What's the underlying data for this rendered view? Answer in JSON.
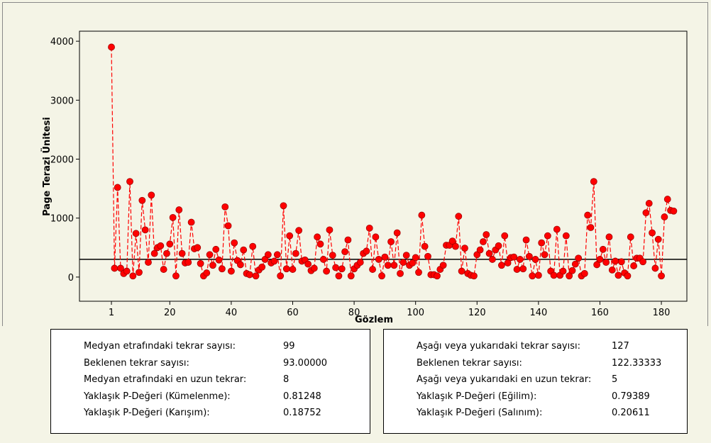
{
  "chart_data": {
    "type": "line",
    "ylabel": "Page Terazi Ünitesi",
    "xlabel": "Gözlem",
    "x": [
      1,
      2,
      3,
      4,
      5,
      6,
      7,
      8,
      9,
      10,
      11,
      12,
      13,
      14,
      15,
      16,
      17,
      18,
      19,
      20,
      21,
      22,
      23,
      24,
      25,
      26,
      27,
      28,
      29,
      30,
      31,
      32,
      33,
      34,
      35,
      36,
      37,
      38,
      39,
      40,
      41,
      42,
      43,
      44,
      45,
      46,
      47,
      48,
      49,
      50,
      51,
      52,
      53,
      54,
      55,
      56,
      57,
      58,
      59,
      60,
      61,
      62,
      63,
      64,
      65,
      66,
      67,
      68,
      69,
      70,
      71,
      72,
      73,
      74,
      75,
      76,
      77,
      78,
      79,
      80,
      81,
      82,
      83,
      84,
      85,
      86,
      87,
      88,
      89,
      90,
      91,
      92,
      93,
      94,
      95,
      96,
      97,
      98,
      99,
      100,
      101,
      102,
      103,
      104,
      105,
      106,
      107,
      108,
      109,
      110,
      111,
      112,
      113,
      114,
      115,
      116,
      117,
      118,
      119,
      120,
      121,
      122,
      123,
      124,
      125,
      126,
      127,
      128,
      129,
      130,
      131,
      132,
      133,
      134,
      135,
      136,
      137,
      138,
      139,
      140,
      141,
      142,
      143,
      144,
      145,
      146,
      147,
      148,
      149,
      150,
      151,
      152,
      153,
      154,
      155,
      156,
      157,
      158,
      159,
      160,
      161,
      162,
      163,
      164,
      165,
      166,
      167,
      168,
      169,
      170,
      171,
      172,
      173,
      174,
      175,
      176,
      177,
      178,
      179,
      180,
      181,
      182,
      183,
      184
    ],
    "series": [
      {
        "name": "Page Terazi Ünitesi",
        "color": "#ff0000",
        "values": [
          3900,
          150,
          1520,
          150,
          60,
          100,
          1620,
          20,
          740,
          80,
          1300,
          800,
          250,
          1390,
          400,
          500,
          530,
          130,
          400,
          560,
          1010,
          20,
          1140,
          400,
          240,
          250,
          930,
          480,
          500,
          230,
          20,
          70,
          380,
          200,
          470,
          290,
          140,
          1190,
          870,
          100,
          580,
          280,
          210,
          460,
          60,
          40,
          520,
          20,
          120,
          170,
          300,
          380,
          240,
          270,
          380,
          20,
          1210,
          140,
          700,
          130,
          400,
          790,
          270,
          290,
          220,
          110,
          150,
          680,
          560,
          300,
          100,
          800,
          370,
          160,
          20,
          140,
          430,
          630,
          20,
          140,
          200,
          250,
          400,
          440,
          830,
          130,
          680,
          300,
          20,
          340,
          200,
          600,
          200,
          750,
          60,
          250,
          370,
          200,
          240,
          330,
          80,
          1050,
          520,
          350,
          40,
          40,
          20,
          130,
          200,
          540,
          540,
          610,
          520,
          1030,
          100,
          490,
          60,
          30,
          20,
          380,
          460,
          600,
          720,
          400,
          300,
          460,
          530,
          200,
          700,
          240,
          330,
          340,
          130,
          300,
          140,
          630,
          350,
          20,
          300,
          30,
          580,
          380,
          700,
          100,
          30,
          810,
          30,
          100,
          700,
          20,
          110,
          220,
          320,
          20,
          60,
          1050,
          840,
          1620,
          210,
          300,
          470,
          250,
          680,
          120,
          270,
          30,
          260,
          70,
          20,
          680,
          190,
          320,
          320,
          260,
          1090,
          1250,
          750,
          150,
          640,
          20,
          1020,
          1320,
          1130,
          1120
        ]
      }
    ],
    "median": 300,
    "xlim": [
      -9.4,
      188.3
    ],
    "xticks": [
      1,
      20,
      40,
      60,
      80,
      100,
      120,
      140,
      160,
      180
    ],
    "ylim": [
      -410,
      4170
    ],
    "yticks": [
      0,
      1000,
      2000,
      3000,
      4000
    ]
  },
  "stats_left": [
    [
      "Medyan etrafındaki tekrar sayısı:",
      "99"
    ],
    [
      "Beklenen tekrar sayısı:",
      "93.00000"
    ],
    [
      "Medyan etrafındaki en uzun tekrar:",
      "8"
    ],
    [
      "Yaklaşık P-Değeri (Kümelenme):",
      "0.81248"
    ],
    [
      "Yaklaşık P-Değeri (Karışım):",
      "0.18752"
    ]
  ],
  "stats_right": [
    [
      "Aşağı veya yukarıdaki tekrar sayısı:",
      "127"
    ],
    [
      "Beklenen tekrar sayısı:",
      "122.33333"
    ],
    [
      "Aşağı veya yukarıdaki en uzun tekrar:",
      "5"
    ],
    [
      "Yaklaşık P-Değeri (Eğilim):",
      "0.79389"
    ],
    [
      "Yaklaşık P-Değeri (Salınım):",
      "0.20611"
    ]
  ]
}
